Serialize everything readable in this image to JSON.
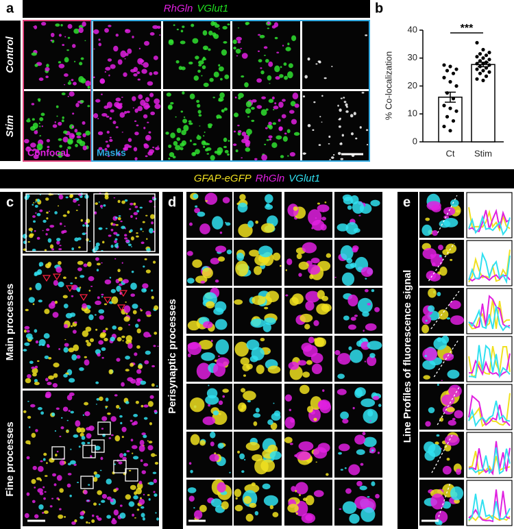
{
  "panel_labels": [
    "a",
    "b",
    "c",
    "d",
    "e"
  ],
  "panel_a": {
    "header": [
      "RhGln",
      "VGlut1"
    ],
    "rows": [
      "Control",
      "Stim"
    ],
    "labels": [
      "Confocal",
      "Masks"
    ]
  },
  "chart_data": {
    "type": "bar",
    "ylabel": "% Co-localization",
    "categories": [
      "Ct",
      "Stim"
    ],
    "values": [
      16,
      27.7
    ],
    "errors": [
      1.8,
      0.8
    ],
    "points": [
      [
        27.5,
        27,
        26,
        25.5,
        24.5,
        23,
        21.5,
        20,
        17.5,
        15.5,
        13,
        12,
        11,
        9,
        7.5,
        5.5,
        4
      ],
      [
        35.5,
        33,
        32,
        31.5,
        31,
        30.5,
        30,
        29.5,
        29,
        28.5,
        28,
        28,
        27.5,
        27,
        26.5,
        26,
        25.5,
        25,
        24.5,
        23.5,
        22.5,
        22
      ]
    ],
    "annotation": "***",
    "color": "#ffffff",
    "ylim": [
      0,
      40
    ],
    "yticks": [
      0,
      10,
      20,
      30,
      40
    ]
  },
  "panel_c_header": [
    "GFAP-eGFP",
    "RhGln",
    "VGlut1"
  ],
  "panel_c": {
    "rows": [
      "Main processes",
      "Fine processes"
    ]
  },
  "panel_d": {
    "label": "Perisynaptic processes"
  },
  "panel_e": {
    "label": "Line Profiles of fluorescence signal"
  }
}
